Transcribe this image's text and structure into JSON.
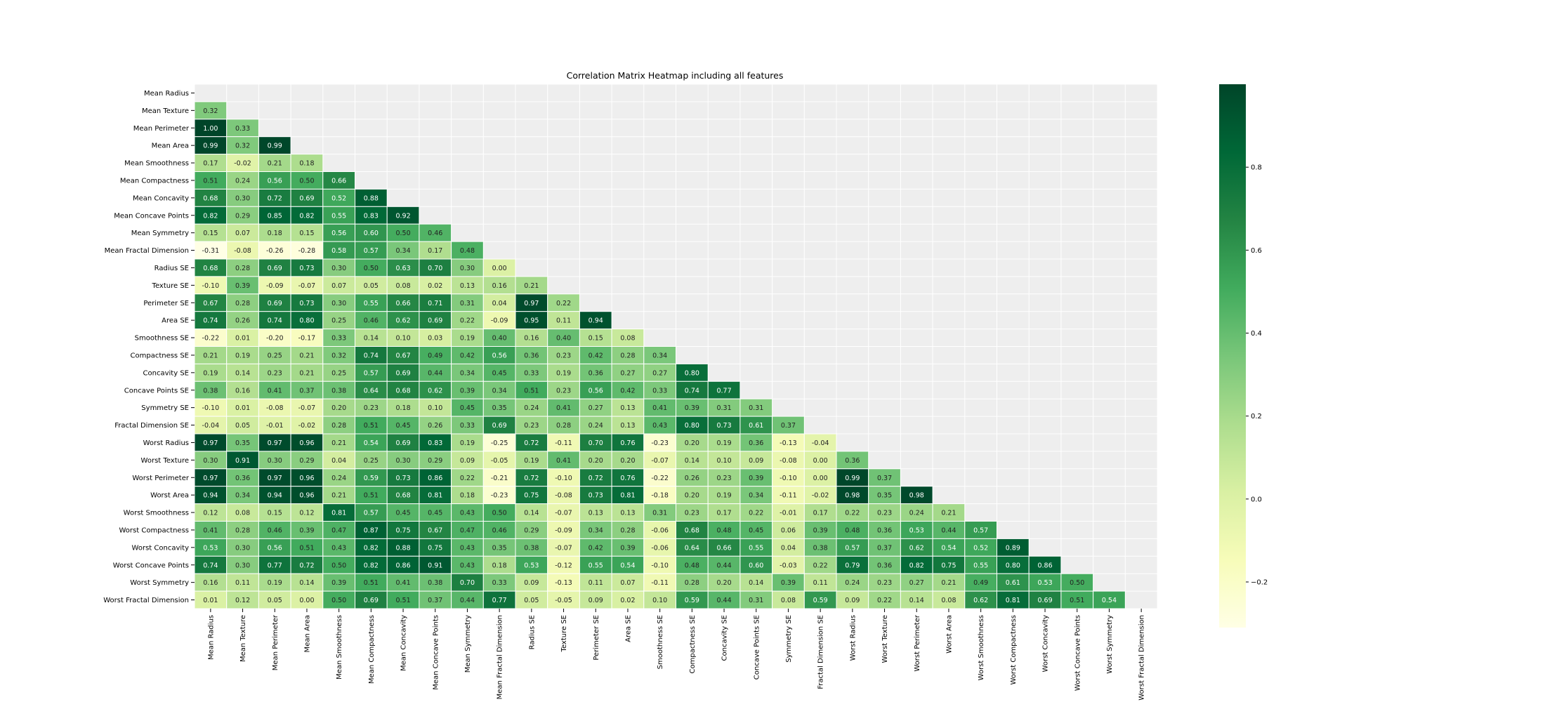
{
  "chart_data": {
    "type": "heatmap",
    "title": "Correlation Matrix Heatmap including all features",
    "mask": "upper-triangle-including-diagonal",
    "features": [
      "Mean Radius",
      "Mean Texture",
      "Mean Perimeter",
      "Mean Area",
      "Mean Smoothness",
      "Mean Compactness",
      "Mean Concavity",
      "Mean Concave Points",
      "Mean Symmetry",
      "Mean Fractal Dimension",
      "Radius SE",
      "Texture SE",
      "Perimeter SE",
      "Area SE",
      "Smoothness SE",
      "Compactness SE",
      "Concavity SE",
      "Concave Points SE",
      "Symmetry SE",
      "Fractal Dimension SE",
      "Worst Radius",
      "Worst Texture",
      "Worst Perimeter",
      "Worst Area",
      "Worst Smoothness",
      "Worst Compactness",
      "Worst Concavity",
      "Worst Concave Points",
      "Worst Symmetry",
      "Worst Fractal Dimension"
    ],
    "values": [
      [],
      [
        0.32
      ],
      [
        1.0,
        0.33
      ],
      [
        0.99,
        0.32,
        0.99
      ],
      [
        0.17,
        -0.02,
        0.21,
        0.18
      ],
      [
        0.51,
        0.24,
        0.56,
        0.5,
        0.66
      ],
      [
        0.68,
        0.3,
        0.72,
        0.69,
        0.52,
        0.88
      ],
      [
        0.82,
        0.29,
        0.85,
        0.82,
        0.55,
        0.83,
        0.92
      ],
      [
        0.15,
        0.07,
        0.18,
        0.15,
        0.56,
        0.6,
        0.5,
        0.46
      ],
      [
        -0.31,
        -0.08,
        -0.26,
        -0.28,
        0.58,
        0.57,
        0.34,
        0.17,
        0.48
      ],
      [
        0.68,
        0.28,
        0.69,
        0.73,
        0.3,
        0.5,
        0.63,
        0.7,
        0.3,
        0.0
      ],
      [
        -0.1,
        0.39,
        -0.09,
        -0.07,
        0.07,
        0.05,
        0.08,
        0.02,
        0.13,
        0.16,
        0.21
      ],
      [
        0.67,
        0.28,
        0.69,
        0.73,
        0.3,
        0.55,
        0.66,
        0.71,
        0.31,
        0.04,
        0.97,
        0.22
      ],
      [
        0.74,
        0.26,
        0.74,
        0.8,
        0.25,
        0.46,
        0.62,
        0.69,
        0.22,
        -0.09,
        0.95,
        0.11,
        0.94
      ],
      [
        -0.22,
        0.01,
        -0.2,
        -0.17,
        0.33,
        0.14,
        0.1,
        0.03,
        0.19,
        0.4,
        0.16,
        0.4,
        0.15,
        0.08
      ],
      [
        0.21,
        0.19,
        0.25,
        0.21,
        0.32,
        0.74,
        0.67,
        0.49,
        0.42,
        0.56,
        0.36,
        0.23,
        0.42,
        0.28,
        0.34
      ],
      [
        0.19,
        0.14,
        0.23,
        0.21,
        0.25,
        0.57,
        0.69,
        0.44,
        0.34,
        0.45,
        0.33,
        0.19,
        0.36,
        0.27,
        0.27,
        0.8
      ],
      [
        0.38,
        0.16,
        0.41,
        0.37,
        0.38,
        0.64,
        0.68,
        0.62,
        0.39,
        0.34,
        0.51,
        0.23,
        0.56,
        0.42,
        0.33,
        0.74,
        0.77
      ],
      [
        -0.1,
        0.01,
        -0.08,
        -0.07,
        0.2,
        0.23,
        0.18,
        0.1,
        0.45,
        0.35,
        0.24,
        0.41,
        0.27,
        0.13,
        0.41,
        0.39,
        0.31,
        0.31
      ],
      [
        -0.04,
        0.05,
        -0.01,
        -0.02,
        0.28,
        0.51,
        0.45,
        0.26,
        0.33,
        0.69,
        0.23,
        0.28,
        0.24,
        0.13,
        0.43,
        0.8,
        0.73,
        0.61,
        0.37
      ],
      [
        0.97,
        0.35,
        0.97,
        0.96,
        0.21,
        0.54,
        0.69,
        0.83,
        0.19,
        -0.25,
        0.72,
        -0.11,
        0.7,
        0.76,
        -0.23,
        0.2,
        0.19,
        0.36,
        -0.13,
        -0.04
      ],
      [
        0.3,
        0.91,
        0.3,
        0.29,
        0.04,
        0.25,
        0.3,
        0.29,
        0.09,
        -0.05,
        0.19,
        0.41,
        0.2,
        0.2,
        -0.07,
        0.14,
        0.1,
        0.09,
        -0.08,
        -0.0,
        0.36
      ],
      [
        0.97,
        0.36,
        0.97,
        0.96,
        0.24,
        0.59,
        0.73,
        0.86,
        0.22,
        -0.21,
        0.72,
        -0.1,
        0.72,
        0.76,
        -0.22,
        0.26,
        0.23,
        0.39,
        -0.1,
        -0.0,
        0.99,
        0.37
      ],
      [
        0.94,
        0.34,
        0.94,
        0.96,
        0.21,
        0.51,
        0.68,
        0.81,
        0.18,
        -0.23,
        0.75,
        -0.08,
        0.73,
        0.81,
        -0.18,
        0.2,
        0.19,
        0.34,
        -0.11,
        -0.02,
        0.98,
        0.35,
        0.98
      ],
      [
        0.12,
        0.08,
        0.15,
        0.12,
        0.81,
        0.57,
        0.45,
        0.45,
        0.43,
        0.5,
        0.14,
        -0.07,
        0.13,
        0.13,
        0.31,
        0.23,
        0.17,
        0.22,
        -0.01,
        0.17,
        0.22,
        0.23,
        0.24,
        0.21
      ],
      [
        0.41,
        0.28,
        0.46,
        0.39,
        0.47,
        0.87,
        0.75,
        0.67,
        0.47,
        0.46,
        0.29,
        -0.09,
        0.34,
        0.28,
        -0.06,
        0.68,
        0.48,
        0.45,
        0.06,
        0.39,
        0.48,
        0.36,
        0.53,
        0.44,
        0.57
      ],
      [
        0.53,
        0.3,
        0.56,
        0.51,
        0.43,
        0.82,
        0.88,
        0.75,
        0.43,
        0.35,
        0.38,
        -0.07,
        0.42,
        0.39,
        -0.06,
        0.64,
        0.66,
        0.55,
        0.04,
        0.38,
        0.57,
        0.37,
        0.62,
        0.54,
        0.52,
        0.89
      ],
      [
        0.74,
        0.3,
        0.77,
        0.72,
        0.5,
        0.82,
        0.86,
        0.91,
        0.43,
        0.18,
        0.53,
        -0.12,
        0.55,
        0.54,
        -0.1,
        0.48,
        0.44,
        0.6,
        -0.03,
        0.22,
        0.79,
        0.36,
        0.82,
        0.75,
        0.55,
        0.8,
        0.86
      ],
      [
        0.16,
        0.11,
        0.19,
        0.14,
        0.39,
        0.51,
        0.41,
        0.38,
        0.7,
        0.33,
        0.09,
        -0.13,
        0.11,
        0.07,
        -0.11,
        0.28,
        0.2,
        0.14,
        0.39,
        0.11,
        0.24,
        0.23,
        0.27,
        0.21,
        0.49,
        0.61,
        0.53,
        0.5
      ],
      [
        0.01,
        0.12,
        0.05,
        0.0,
        0.5,
        0.69,
        0.51,
        0.37,
        0.44,
        0.77,
        0.05,
        -0.05,
        0.09,
        0.02,
        0.1,
        0.59,
        0.44,
        0.31,
        0.08,
        0.59,
        0.09,
        0.22,
        0.14,
        0.08,
        0.62,
        0.81,
        0.69,
        0.51,
        0.54
      ]
    ],
    "colormap": "YlGn",
    "colormap_stops": [
      "#ffffe5",
      "#f7fcb9",
      "#d9f0a3",
      "#addd8e",
      "#78c679",
      "#41ab5d",
      "#238443",
      "#006837",
      "#004529"
    ],
    "vmin": -0.31,
    "vmax": 1.0,
    "colorbar": {
      "ticks": [
        -0.2,
        0.0,
        0.2,
        0.4,
        0.6,
        0.8
      ],
      "tick_labels": [
        "−0.2",
        "0.0",
        "0.2",
        "0.4",
        "0.6",
        "0.8"
      ]
    },
    "annotate": true,
    "annotation_format": "2 decimals",
    "grid": true,
    "grid_color": "#ffffff",
    "masked_background": "#eeeeee"
  }
}
